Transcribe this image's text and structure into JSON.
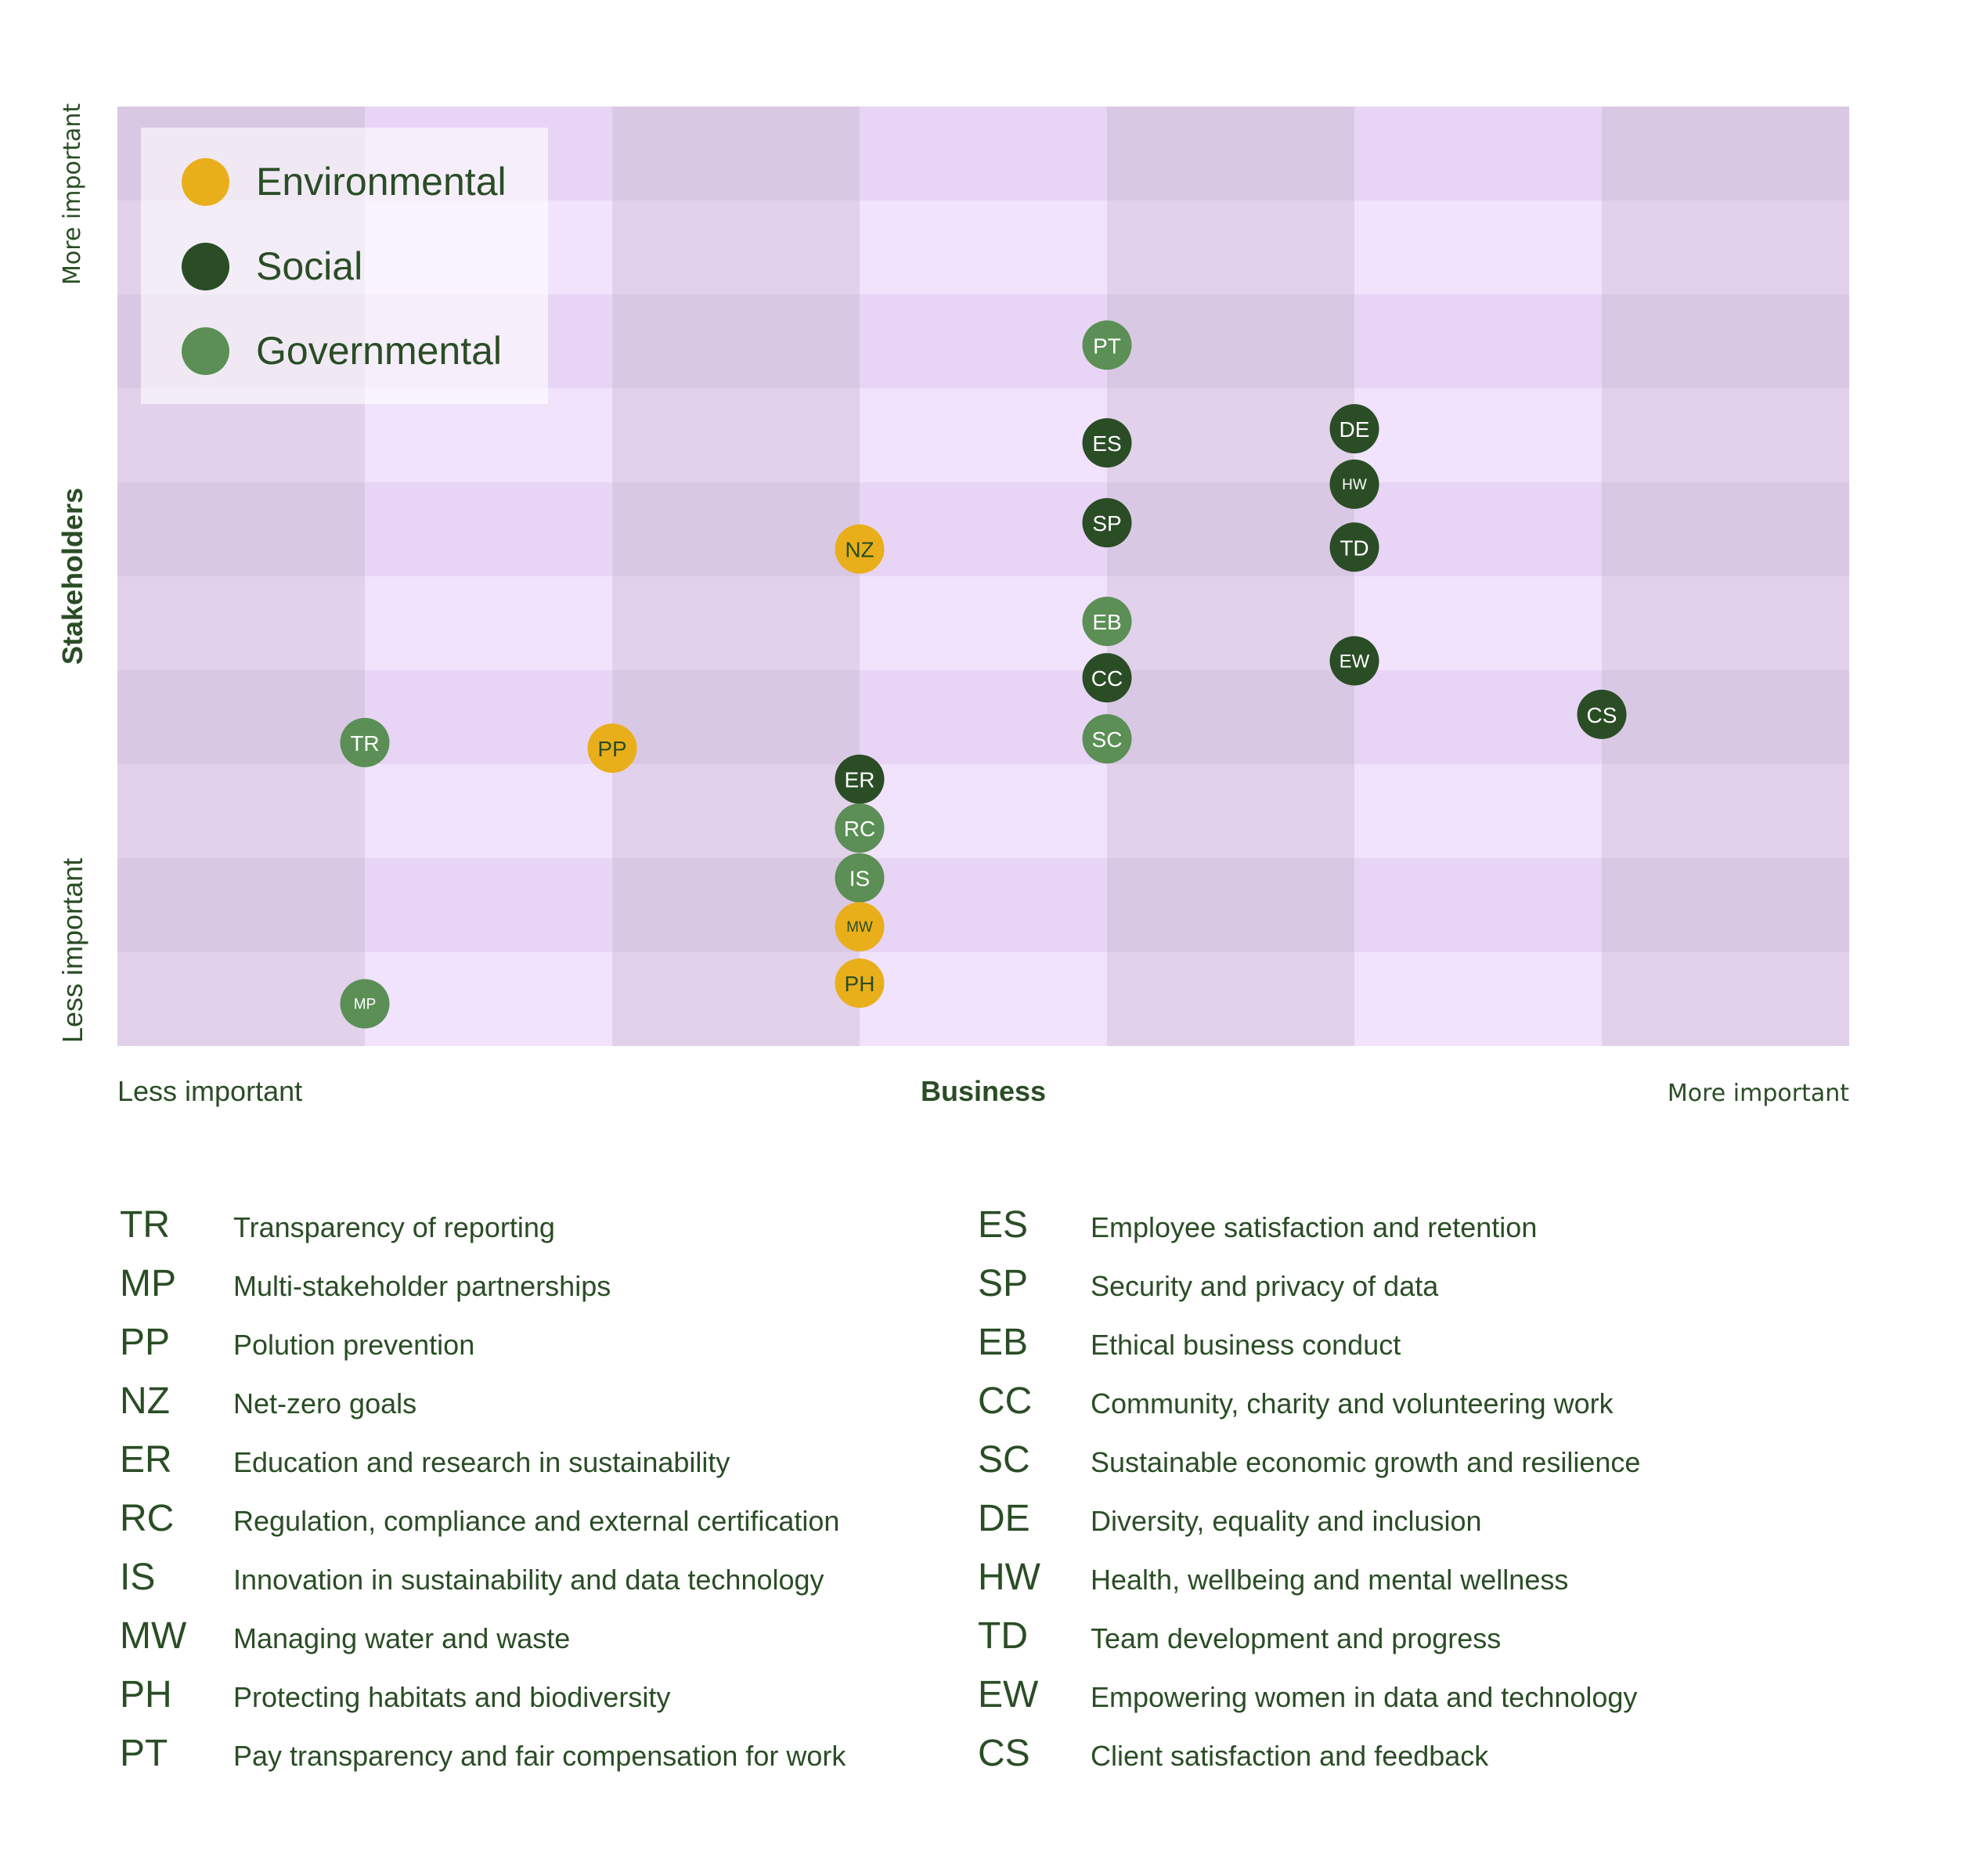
{
  "chart_data": {
    "type": "scatter",
    "title": "",
    "xlabel": "Business",
    "ylabel": "Stakeholders",
    "x_axis": {
      "low_label": "Less important",
      "high_label": "More important"
    },
    "y_axis": {
      "low_label": "Less important",
      "high_label": "More important"
    },
    "xlim": [
      0,
      7
    ],
    "ylim": [
      0,
      10
    ],
    "grid": true,
    "legend_position": "top-left",
    "grid_colors": {
      "dark_col_dark_row": "#D9C8E3",
      "light_col_dark_row": "#E8D5F6",
      "dark_col_light_row": "#E1D1EA",
      "light_col_light_row": "#F1E3FC"
    },
    "categories": [
      {
        "name": "Environmental",
        "color": "#E9AF1A",
        "label_color": "#2A4D25"
      },
      {
        "name": "Social",
        "color": "#2A4D25",
        "label_color": "#FFFFFF"
      },
      {
        "name": "Governmental",
        "color": "#5B8F55",
        "label_color": "#FFFFFF"
      }
    ],
    "points": [
      {
        "code": "TR",
        "category": 2,
        "x": 1,
        "y": 3.23
      },
      {
        "code": "MP",
        "category": 2,
        "x": 1,
        "y": 0.45
      },
      {
        "code": "PP",
        "category": 0,
        "x": 2,
        "y": 3.17
      },
      {
        "code": "NZ",
        "category": 0,
        "x": 3,
        "y": 5.29
      },
      {
        "code": "ER",
        "category": 1,
        "x": 3,
        "y": 2.84
      },
      {
        "code": "RC",
        "category": 2,
        "x": 3,
        "y": 2.32
      },
      {
        "code": "IS",
        "category": 2,
        "x": 3,
        "y": 1.79
      },
      {
        "code": "MW",
        "category": 0,
        "x": 3,
        "y": 1.27
      },
      {
        "code": "PH",
        "category": 0,
        "x": 3,
        "y": 0.67
      },
      {
        "code": "PT",
        "category": 2,
        "x": 4,
        "y": 7.46
      },
      {
        "code": "ES",
        "category": 1,
        "x": 4,
        "y": 6.42
      },
      {
        "code": "SP",
        "category": 1,
        "x": 4,
        "y": 5.57
      },
      {
        "code": "EB",
        "category": 2,
        "x": 4,
        "y": 4.52
      },
      {
        "code": "CC",
        "category": 1,
        "x": 4,
        "y": 3.92
      },
      {
        "code": "SC",
        "category": 2,
        "x": 4,
        "y": 3.27
      },
      {
        "code": "DE",
        "category": 1,
        "x": 5,
        "y": 6.57
      },
      {
        "code": "HW",
        "category": 1,
        "x": 5,
        "y": 5.98
      },
      {
        "code": "TD",
        "category": 1,
        "x": 5,
        "y": 5.31
      },
      {
        "code": "EW",
        "category": 1,
        "x": 5,
        "y": 4.1
      },
      {
        "code": "CS",
        "category": 1,
        "x": 6,
        "y": 3.53
      }
    ]
  },
  "glossary": {
    "left": [
      {
        "code": "TR",
        "description": "Transparency of reporting"
      },
      {
        "code": "MP",
        "description": "Multi-stakeholder partnerships"
      },
      {
        "code": "PP",
        "description": "Polution prevention"
      },
      {
        "code": "NZ",
        "description": "Net-zero goals"
      },
      {
        "code": "ER",
        "description": "Education and research in sustainability"
      },
      {
        "code": "RC",
        "description": "Regulation, compliance and external certification"
      },
      {
        "code": "IS",
        "description": "Innovation in sustainability and data technology"
      },
      {
        "code": "MW",
        "description": "Managing water and waste"
      },
      {
        "code": "PH",
        "description": "Protecting habitats and biodiversity"
      },
      {
        "code": "PT",
        "description": "Pay transparency and fair compensation for work"
      }
    ],
    "right": [
      {
        "code": "ES",
        "description": "Employee satisfaction and retention"
      },
      {
        "code": "SP",
        "description": "Security and privacy of data"
      },
      {
        "code": "EB",
        "description": "Ethical business conduct"
      },
      {
        "code": "CC",
        "description": "Community, charity and volunteering work"
      },
      {
        "code": "SC",
        "description": "Sustainable economic growth and resilience"
      },
      {
        "code": "DE",
        "description": "Diversity, equality and inclusion"
      },
      {
        "code": "HW",
        "description": "Health, wellbeing and mental wellness"
      },
      {
        "code": "TD",
        "description": "Team development and progress"
      },
      {
        "code": "EW",
        "description": "Empowering women in data and technology"
      },
      {
        "code": "CS",
        "description": "Client satisfaction and feedback"
      }
    ]
  }
}
